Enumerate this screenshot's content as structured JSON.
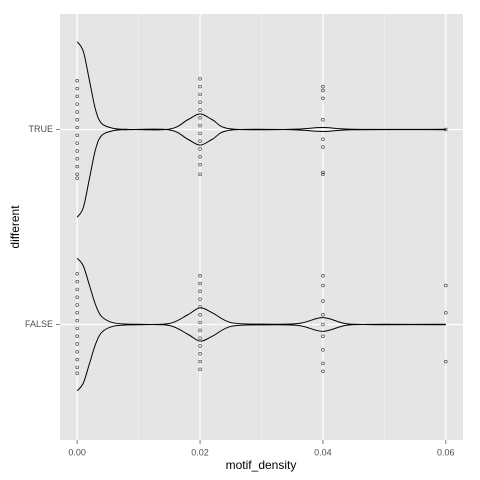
{
  "chart_data": {
    "type": "violin",
    "x_label": "motif_density",
    "y_label": "different",
    "categories": [
      "FALSE",
      "TRUE"
    ],
    "xlim": [
      -0.0028,
      0.0628
    ],
    "xticks": [
      {
        "value": 0,
        "label": "0.00"
      },
      0.02,
      0.04,
      0.06
    ],
    "xminor": [
      0.01,
      0.03,
      0.05
    ],
    "grid": true,
    "color": "#000000",
    "point_color": "#333333",
    "violins": [
      {
        "density_x": [
          0,
          0.001,
          0.002,
          0.003,
          0.004,
          0.006,
          0.01,
          0.015,
          0.018,
          0.02,
          0.022,
          0.025,
          0.03,
          0.036,
          0.04,
          0.044,
          0.05,
          0.06
        ],
        "density": [
          0.34,
          0.3,
          0.2,
          0.1,
          0.04,
          0.008,
          0.001,
          0.005,
          0.05,
          0.085,
          0.06,
          0.01,
          0.002,
          0.005,
          0.035,
          0.003,
          0.001,
          0.001
        ],
        "points": [
          {
            "x": 0,
            "offsets": [
              -0.26,
              -0.22,
              -0.18,
              -0.14,
              -0.1,
              -0.06,
              -0.02,
              0.02,
              0.06,
              0.1,
              0.14,
              0.18,
              0.22,
              0.25
            ]
          },
          {
            "x": 0.02,
            "offsets": [
              -0.25,
              -0.21,
              -0.17,
              -0.13,
              -0.09,
              -0.05,
              -0.01,
              0.03,
              0.07,
              0.11,
              0.15,
              0.19,
              0.23
            ]
          },
          {
            "x": 0.04,
            "offsets": [
              -0.25,
              -0.2,
              -0.12,
              -0.05,
              0,
              0.06,
              0.13,
              0.2,
              0.24
            ]
          },
          {
            "x": 0.06,
            "offsets": [
              -0.2,
              -0.06,
              0.19
            ]
          }
        ]
      },
      {
        "density_x": [
          0,
          0.001,
          0.002,
          0.003,
          0.004,
          0.006,
          0.008,
          0.015,
          0.018,
          0.02,
          0.022,
          0.025,
          0.035,
          0.04,
          0.045,
          0.06
        ],
        "density": [
          0.45,
          0.4,
          0.25,
          0.1,
          0.03,
          0.005,
          0.001,
          0.002,
          0.05,
          0.08,
          0.05,
          0.003,
          0.001,
          0.01,
          0.001,
          0.001
        ],
        "points": [
          {
            "x": 0,
            "offsets": [
              -0.25,
              -0.21,
              -0.17,
              -0.13,
              -0.09,
              -0.05,
              -0.01,
              0.03,
              0.07,
              0.11,
              0.15,
              0.19,
              0.23,
              0.25
            ]
          },
          {
            "x": 0.02,
            "offsets": [
              -0.26,
              -0.22,
              -0.18,
              -0.14,
              -0.1,
              -0.06,
              -0.02,
              0.02,
              0.06,
              0.1,
              0.14,
              0.18,
              0.23
            ]
          },
          {
            "x": 0.04,
            "offsets": [
              -0.22,
              -0.2,
              -0.16,
              -0.05,
              0.05,
              0.09,
              0.22,
              0.23
            ]
          },
          {
            "x": 0.06,
            "offsets": [
              0
            ]
          }
        ]
      }
    ]
  }
}
